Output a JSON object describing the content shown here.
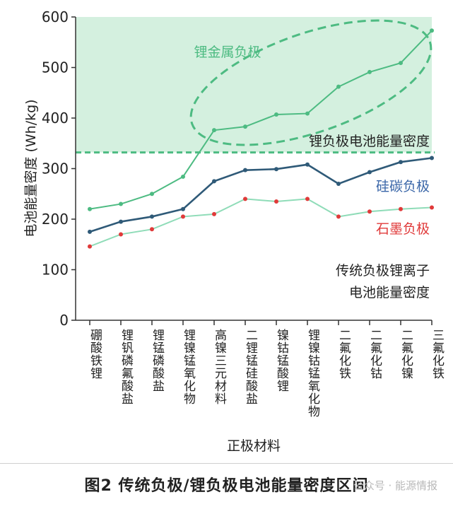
{
  "caption": "图2 传统负极/锂负极电池能量密度区间",
  "watermark": "公众号 · 能源情报",
  "chart_data": {
    "type": "line",
    "xlabel": "正极材料",
    "ylabel": "电池能量密度 (Wh/kg)",
    "ylim": [
      0,
      600
    ],
    "yticks": [
      0,
      100,
      200,
      300,
      400,
      500,
      600
    ],
    "categories": [
      "硼酸铁锂",
      "锂钒磷氟酸盐",
      "锂锰磷酸盐",
      "锂镍锰氧化物",
      "高镍三元材料",
      "二锂锰硅酸盐",
      "镍钴锰酸锂",
      "锂镍钴锰氧化物",
      "二氟化铁",
      "二氟化钴",
      "二氟化镍",
      "三氟化铁"
    ],
    "series": [
      {
        "name": "锂金属负极",
        "color": "#4dbb82",
        "values": [
          220,
          230,
          250,
          284,
          376,
          383,
          407,
          409,
          462,
          491,
          509,
          573
        ]
      },
      {
        "name": "硅碳负极",
        "color": "#2f5a78",
        "values": [
          175,
          195,
          205,
          220,
          275,
          297,
          299,
          308,
          270,
          293,
          313,
          321
        ]
      },
      {
        "name": "石墨负极",
        "color": "#8fdcb8",
        "marker_color": "#e03a3a",
        "values": [
          146,
          170,
          180,
          205,
          210,
          240,
          235,
          240,
          205,
          215,
          220,
          223
        ]
      }
    ],
    "threshold": {
      "value": 332,
      "label": "锂负极电池能量密度"
    },
    "annotations": {
      "lithium_metal": "锂金属负极",
      "silicon_carbon": "硅碳负极",
      "graphite": "石墨负极",
      "traditional_line1": "传统负极锂离子",
      "traditional_line2": "电池能量密度"
    },
    "colors": {
      "shade": "#d4f0df",
      "threshold": "#4dbb82",
      "lithium_label": "#4dbb82",
      "silicon_label": "#3a66a8",
      "graphite_label": "#e03a3a",
      "axis": "#333333"
    }
  }
}
